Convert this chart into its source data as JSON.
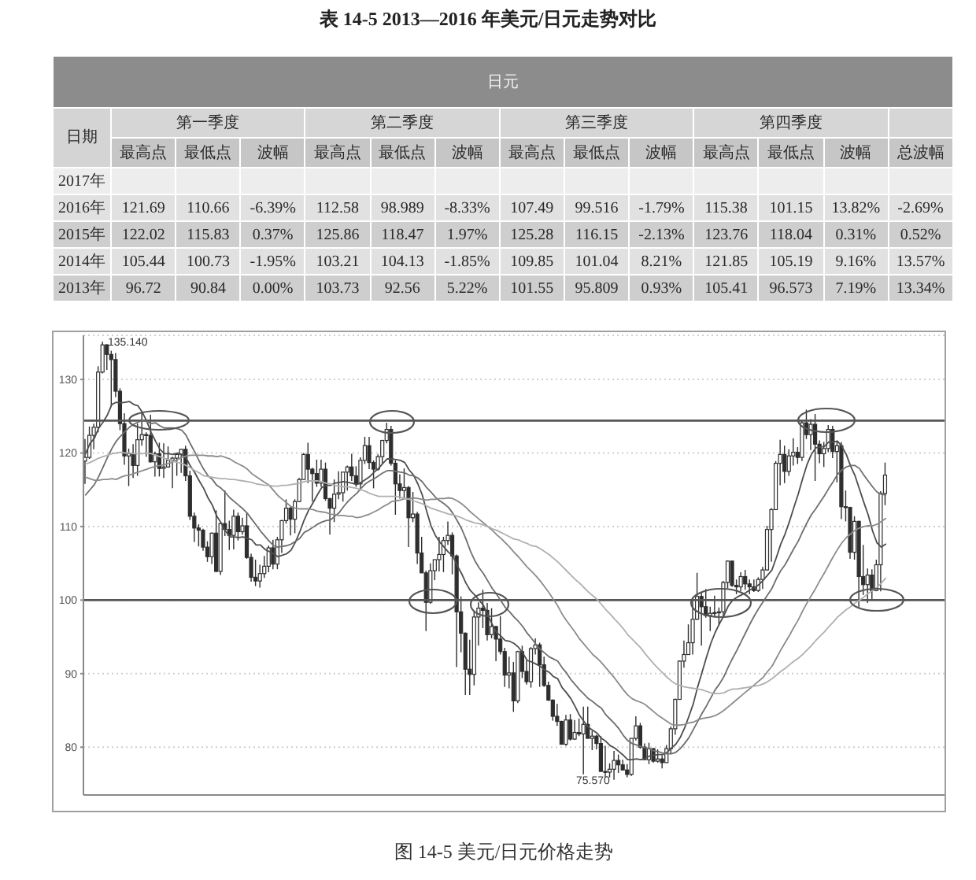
{
  "chart_data": [
    {
      "type": "heatmap",
      "title": "表 14-5 2013—2016 年美元/日元走势对比",
      "subtitle": "日元",
      "ylabel": "日期",
      "annotations": [
        "第一季度",
        "第二季度",
        "第三季度",
        "第四季度"
      ],
      "categories": [
        "最高点",
        "最低点",
        "波幅",
        "最高点",
        "最低点",
        "波幅",
        "最高点",
        "最低点",
        "波幅",
        "最高点",
        "最低点",
        "波幅",
        "总波幅"
      ],
      "y_categories": [
        "2017年",
        "2016年",
        "2015年",
        "2014年",
        "2013年"
      ],
      "cells": [
        [
          null,
          null,
          null,
          null,
          null,
          null,
          null,
          null,
          null,
          null,
          null,
          null,
          null
        ],
        [
          121.69,
          110.66,
          -6.39,
          112.58,
          98.989,
          -8.33,
          107.49,
          99.516,
          -1.79,
          115.38,
          101.15,
          13.82,
          -2.69
        ],
        [
          122.02,
          115.83,
          0.37,
          125.86,
          118.47,
          1.97,
          125.28,
          116.15,
          -2.13,
          123.76,
          118.04,
          0.31,
          0.52
        ],
        [
          105.44,
          100.73,
          -1.95,
          103.21,
          104.13,
          -1.85,
          109.85,
          101.04,
          8.21,
          121.85,
          105.19,
          9.16,
          13.57
        ],
        [
          96.72,
          90.84,
          0,
          103.73,
          92.56,
          5.22,
          101.55,
          95.809,
          0.93,
          105.41,
          96.573,
          7.19,
          13.34
        ]
      ],
      "cell_labels": [
        [
          null,
          null,
          null,
          null,
          null,
          null,
          null,
          null,
          null,
          null,
          null,
          null,
          null
        ],
        [
          "121.69",
          "110.66",
          "-6.39%",
          "112.58",
          "98.989",
          "-8.33%",
          "107.49",
          "99.516",
          "-1.79%",
          "115.38",
          "101.15",
          "13.82%",
          "-2.69%"
        ],
        [
          "122.02",
          "115.83",
          "0.37%",
          "125.86",
          "118.47",
          "1.97%",
          "125.28",
          "116.15",
          "-2.13%",
          "123.76",
          "118.04",
          "0.31%",
          "0.52%"
        ],
        [
          "105.44",
          "100.73",
          "-1.95%",
          "103.21",
          "104.13",
          "-1.85%",
          "109.85",
          "101.04",
          "8.21%",
          "121.85",
          "105.19",
          "9.16%",
          "13.57%"
        ],
        [
          "96.72",
          "90.84",
          "0.00%",
          "103.73",
          "92.56",
          "5.22%",
          "101.55",
          "95.809",
          "0.93%",
          "105.41",
          "96.573",
          "7.19%",
          "13.34%"
        ]
      ]
    },
    {
      "type": "candlestick",
      "title": "图 14-5 美元/日元价格走势",
      "color": "#2e2e2e",
      "categories": [
        null,
        null,
        null,
        null,
        null,
        null,
        null,
        null,
        null,
        null,
        null,
        null,
        null,
        null,
        null,
        null,
        null,
        null,
        null,
        null,
        null,
        null,
        null,
        null,
        null,
        null,
        null,
        null,
        null,
        null,
        null,
        null,
        null,
        null,
        null,
        null,
        null,
        null,
        null,
        null,
        null,
        null,
        null,
        null,
        null,
        null,
        null,
        null,
        null,
        null,
        null,
        null,
        null,
        null,
        null,
        null,
        null,
        null,
        null,
        null,
        null,
        null,
        null,
        null,
        null,
        null,
        null,
        null,
        null,
        null,
        null,
        null,
        null,
        null,
        null,
        null,
        null,
        null,
        null,
        null,
        null,
        null,
        null,
        null,
        null,
        null,
        null,
        null,
        null,
        null,
        null,
        null,
        null,
        null,
        null,
        null,
        null,
        null,
        null,
        null,
        null,
        null,
        null,
        null,
        null,
        null,
        null,
        null,
        null,
        null,
        null,
        null,
        null,
        null,
        null,
        null,
        null,
        null,
        null,
        null,
        null,
        null,
        null,
        null,
        null,
        null,
        null,
        null,
        null,
        null,
        null,
        null,
        null,
        null,
        null,
        null,
        null,
        null,
        null,
        null,
        null,
        null,
        null,
        null,
        null,
        null,
        null,
        null,
        null,
        null,
        null,
        null,
        null,
        null,
        null,
        null,
        null,
        null,
        null,
        null,
        null,
        null,
        null,
        null,
        null,
        null,
        null,
        null,
        null,
        null,
        null,
        null,
        null,
        null,
        null,
        null,
        null,
        null,
        null,
        null,
        null,
        null,
        null,
        null
      ],
      "ohlc": [
        [
          118.9,
          121.9,
          115.8,
          119.4
        ],
        [
          119.4,
          123.6,
          119.2,
          122.4
        ],
        [
          122.4,
          124.0,
          120.5,
          123.5
        ],
        [
          123.5,
          131.8,
          122.8,
          131.0
        ],
        [
          131.0,
          135.14,
          130.8,
          134.7
        ],
        [
          134.7,
          134.8,
          131.3,
          133.4
        ],
        [
          133.4,
          133.9,
          126.3,
          132.7
        ],
        [
          132.7,
          133.6,
          127.6,
          128.4
        ],
        [
          128.4,
          128.8,
          123.1,
          124.0
        ],
        [
          124.0,
          125.4,
          118.4,
          119.6
        ],
        [
          119.6,
          120.6,
          115.5,
          119.9
        ],
        [
          119.9,
          121.2,
          116.6,
          118.3
        ],
        [
          118.3,
          124.0,
          116.9,
          121.8
        ],
        [
          121.8,
          125.6,
          121.0,
          122.5
        ],
        [
          122.5,
          122.8,
          119.5,
          122.4
        ],
        [
          122.4,
          125.2,
          118.7,
          118.8
        ],
        [
          118.8,
          120.2,
          116.8,
          119.9
        ],
        [
          119.9,
          121.4,
          116.8,
          117.9
        ],
        [
          117.9,
          121.3,
          116.6,
          118.1
        ],
        [
          118.1,
          120.9,
          118.0,
          119.0
        ],
        [
          119.0,
          119.5,
          115.2,
          119.3
        ],
        [
          119.3,
          120.0,
          116.9,
          119.8
        ],
        [
          119.8,
          120.6,
          117.3,
          120.5
        ],
        [
          120.5,
          121.0,
          116.2,
          116.9
        ],
        [
          116.9,
          117.6,
          110.9,
          111.4
        ],
        [
          111.4,
          111.9,
          107.9,
          109.8
        ],
        [
          109.8,
          110.3,
          107.3,
          109.5
        ],
        [
          109.5,
          109.7,
          106.7,
          107.2
        ],
        [
          107.2,
          108.0,
          105.2,
          105.9
        ],
        [
          105.9,
          109.2,
          104.9,
          109.1
        ],
        [
          109.1,
          112.2,
          103.8,
          103.9
        ],
        [
          103.9,
          110.5,
          103.4,
          110.4
        ],
        [
          110.4,
          114.9,
          108.7,
          109.6
        ],
        [
          109.6,
          110.8,
          106.8,
          108.8
        ],
        [
          108.8,
          112.3,
          106.9,
          111.4
        ],
        [
          111.4,
          111.9,
          108.1,
          109.3
        ],
        [
          109.3,
          111.2,
          108.9,
          110.1
        ],
        [
          110.1,
          111.9,
          105.6,
          105.8
        ],
        [
          105.8,
          106.3,
          102.5,
          103.1
        ],
        [
          103.1,
          105.5,
          101.9,
          102.6
        ],
        [
          102.6,
          104.8,
          101.7,
          103.6
        ],
        [
          103.6,
          106.0,
          103.0,
          104.6
        ],
        [
          104.6,
          107.4,
          103.8,
          107.1
        ],
        [
          107.1,
          108.2,
          104.2,
          104.9
        ],
        [
          104.9,
          108.6,
          104.2,
          108.2
        ],
        [
          108.2,
          110.9,
          106.4,
          110.8
        ],
        [
          110.8,
          113.7,
          110.4,
          112.5
        ],
        [
          112.5,
          112.7,
          108.8,
          111.0
        ],
        [
          111.0,
          113.7,
          109.1,
          113.4
        ],
        [
          113.4,
          116.6,
          113.3,
          116.4
        ],
        [
          116.4,
          120.0,
          116.4,
          119.8
        ],
        [
          119.8,
          121.4,
          115.9,
          117.8
        ],
        [
          117.8,
          118.0,
          113.4,
          117.2
        ],
        [
          117.2,
          119.1,
          115.4,
          115.9
        ],
        [
          115.9,
          119.1,
          115.4,
          117.8
        ],
        [
          117.8,
          118.7,
          113.5,
          113.8
        ],
        [
          113.8,
          113.9,
          108.9,
          112.5
        ],
        [
          112.5,
          116.4,
          110.6,
          114.4
        ],
        [
          114.4,
          117.5,
          113.7,
          114.6
        ],
        [
          114.6,
          117.4,
          113.4,
          117.4
        ],
        [
          117.4,
          118.3,
          114.9,
          118.1
        ],
        [
          118.1,
          119.9,
          116.2,
          116.9
        ],
        [
          116.9,
          118.2,
          115.4,
          115.8
        ],
        [
          115.8,
          119.4,
          114.9,
          119.0
        ],
        [
          119.0,
          122.2,
          118.5,
          121.0
        ],
        [
          121.0,
          122.2,
          117.8,
          118.7
        ],
        [
          118.7,
          119.0,
          115.2,
          117.8
        ],
        [
          117.8,
          119.8,
          117.6,
          119.5
        ],
        [
          119.5,
          121.8,
          118.6,
          121.7
        ],
        [
          121.7,
          124.1,
          121.3,
          123.2
        ],
        [
          123.2,
          123.7,
          118.3,
          118.6
        ],
        [
          118.6,
          119.0,
          111.6,
          115.8
        ],
        [
          115.8,
          117.1,
          113.8,
          114.9
        ],
        [
          114.9,
          117.9,
          113.7,
          115.3
        ],
        [
          115.3,
          115.5,
          107.2,
          111.2
        ],
        [
          111.2,
          114.7,
          110.6,
          111.7
        ],
        [
          111.7,
          112.0,
          104.9,
          106.4
        ],
        [
          106.4,
          108.6,
          103.7,
          103.7
        ],
        [
          103.7,
          104.0,
          95.8,
          99.7
        ],
        [
          99.7,
          105.0,
          99.5,
          104.0
        ],
        [
          104.0,
          105.5,
          102.7,
          105.5
        ],
        [
          105.5,
          108.6,
          103.9,
          106.2
        ],
        [
          106.2,
          108.6,
          103.8,
          108.1
        ],
        [
          108.1,
          110.7,
          107.5,
          108.8
        ],
        [
          108.8,
          109.2,
          103.5,
          106.0
        ],
        [
          106.0,
          106.2,
          90.9,
          98.4
        ],
        [
          98.4,
          100.5,
          92.9,
          95.5
        ],
        [
          95.5,
          95.6,
          87.1,
          90.6
        ],
        [
          90.6,
          94.6,
          87.1,
          89.9
        ],
        [
          89.9,
          98.4,
          88.4,
          97.7
        ],
        [
          97.7,
          99.7,
          93.8,
          98.9
        ],
        [
          98.9,
          101.4,
          96.2,
          98.6
        ],
        [
          98.6,
          99.6,
          94.5,
          95.3
        ],
        [
          95.3,
          98.9,
          94.8,
          96.4
        ],
        [
          96.4,
          96.5,
          91.7,
          94.7
        ],
        [
          94.7,
          97.8,
          92.6,
          93.0
        ],
        [
          93.0,
          93.5,
          88.2,
          89.8
        ],
        [
          89.8,
          92.3,
          88.0,
          90.1
        ],
        [
          90.1,
          91.6,
          84.8,
          86.3
        ],
        [
          86.3,
          93.1,
          86.0,
          93.0
        ],
        [
          93.0,
          93.8,
          89.4,
          90.3
        ],
        [
          90.3,
          91.8,
          88.5,
          88.9
        ],
        [
          88.9,
          93.6,
          88.1,
          93.4
        ],
        [
          93.4,
          94.8,
          92.6,
          93.9
        ],
        [
          93.9,
          94.2,
          88.2,
          91.2
        ],
        [
          91.2,
          92.3,
          88.2,
          88.4
        ],
        [
          88.4,
          88.9,
          86.3,
          86.4
        ],
        [
          86.4,
          86.5,
          83.6,
          84.2
        ],
        [
          84.2,
          85.9,
          82.9,
          83.5
        ],
        [
          83.5,
          83.6,
          80.4,
          80.4
        ],
        [
          80.4,
          84.4,
          80.2,
          83.7
        ],
        [
          83.7,
          84.5,
          80.9,
          81.1
        ],
        [
          81.1,
          83.7,
          81.0,
          82.0
        ],
        [
          82.0,
          83.9,
          81.5,
          81.8
        ],
        [
          81.8,
          85.5,
          76.3,
          83.1
        ],
        [
          83.1,
          85.5,
          81.2,
          81.2
        ],
        [
          81.2,
          82.2,
          79.6,
          81.5
        ],
        [
          81.5,
          81.7,
          79.7,
          80.5
        ],
        [
          80.5,
          81.5,
          76.7,
          76.7
        ],
        [
          76.7,
          80.2,
          75.9,
          76.6
        ],
        [
          76.6,
          77.8,
          75.9,
          77.0
        ],
        [
          77.0,
          79.5,
          75.57,
          78.2
        ],
        [
          78.2,
          79.0,
          76.5,
          77.6
        ],
        [
          77.6,
          78.3,
          76.9,
          76.9
        ],
        [
          76.9,
          77.7,
          75.9,
          76.3
        ],
        [
          76.3,
          81.2,
          76.1,
          81.2
        ],
        [
          81.2,
          84.2,
          80.9,
          82.9
        ],
        [
          82.9,
          83.3,
          79.8,
          80.0
        ],
        [
          80.0,
          80.5,
          78.3,
          78.3
        ],
        [
          78.3,
          80.6,
          77.7,
          79.8
        ],
        [
          79.8,
          79.9,
          77.9,
          78.1
        ],
        [
          78.1,
          79.7,
          77.9,
          78.4
        ],
        [
          78.4,
          78.9,
          77.1,
          77.9
        ],
        [
          77.9,
          80.3,
          77.9,
          79.8
        ],
        [
          79.8,
          82.8,
          79.1,
          82.5
        ],
        [
          82.5,
          86.6,
          81.7,
          86.5
        ],
        [
          86.5,
          91.8,
          86.5,
          91.7
        ],
        [
          91.7,
          94.5,
          90.8,
          92.6
        ],
        [
          92.6,
          96.7,
          92.6,
          94.2
        ],
        [
          94.2,
          99.9,
          92.6,
          97.4
        ],
        [
          97.4,
          103.7,
          97.3,
          100.5
        ],
        [
          100.5,
          101.0,
          93.8,
          99.1
        ],
        [
          99.1,
          101.5,
          97.6,
          97.9
        ],
        [
          97.9,
          99.1,
          95.8,
          98.2
        ],
        [
          98.2,
          100.6,
          97.7,
          98.3
        ],
        [
          98.3,
          99.0,
          96.6,
          98.4
        ],
        [
          98.4,
          102.6,
          97.6,
          102.4
        ],
        [
          102.4,
          105.4,
          101.6,
          105.3
        ],
        [
          105.3,
          105.4,
          101.8,
          102.0
        ],
        [
          102.0,
          102.8,
          100.8,
          101.8
        ],
        [
          101.8,
          103.8,
          101.2,
          103.2
        ],
        [
          103.2,
          104.1,
          101.4,
          102.2
        ],
        [
          102.2,
          102.8,
          100.8,
          101.8
        ],
        [
          101.8,
          102.8,
          101.1,
          101.3
        ],
        [
          101.3,
          103.1,
          101.1,
          102.8
        ],
        [
          102.8,
          104.5,
          101.5,
          104.1
        ],
        [
          104.1,
          110.1,
          104.0,
          109.6
        ],
        [
          109.6,
          112.5,
          105.2,
          112.3
        ],
        [
          112.3,
          118.9,
          112.3,
          118.6
        ],
        [
          118.6,
          121.8,
          115.6,
          119.8
        ],
        [
          119.8,
          121.0,
          115.9,
          117.5
        ],
        [
          117.5,
          120.5,
          116.9,
          119.6
        ],
        [
          119.6,
          122.0,
          118.3,
          120.1
        ],
        [
          120.1,
          120.8,
          118.5,
          119.4
        ],
        [
          119.4,
          124.5,
          118.9,
          124.1
        ],
        [
          124.1,
          125.9,
          121.9,
          122.5
        ],
        [
          122.5,
          124.6,
          120.4,
          123.9
        ],
        [
          123.9,
          125.3,
          116.2,
          121.2
        ],
        [
          121.2,
          121.7,
          118.6,
          119.9
        ],
        [
          119.9,
          121.5,
          118.1,
          120.6
        ],
        [
          120.6,
          123.8,
          120.1,
          123.2
        ],
        [
          123.2,
          123.7,
          119.3,
          120.2
        ],
        [
          120.2,
          121.7,
          116.0,
          121.0
        ],
        [
          121.0,
          121.5,
          111.0,
          112.7
        ],
        [
          112.7,
          114.9,
          110.7,
          112.6
        ],
        [
          112.6,
          112.7,
          105.6,
          106.5
        ],
        [
          106.5,
          111.4,
          105.5,
          110.7
        ],
        [
          110.7,
          110.8,
          99.0,
          103.2
        ],
        [
          103.2,
          107.5,
          100.7,
          102.1
        ],
        [
          102.1,
          104.3,
          99.6,
          103.4
        ],
        [
          103.4,
          104.2,
          100.1,
          101.3
        ],
        [
          101.3,
          105.5,
          101.2,
          104.8
        ],
        [
          104.8,
          114.8,
          101.2,
          114.5
        ],
        [
          114.5,
          118.7,
          112.9,
          117.0
        ]
      ],
      "series": [
        {
          "type": "line",
          "color": "#4d4d4d",
          "values": [
            119.9,
            121.3,
            122.0,
            123.4,
            124.2,
            125.2,
            126.6,
            126.9,
            126.8,
            126.9,
            127.0,
            126.6,
            126.4,
            125.5,
            124.3,
            122.8,
            121.6,
            120.5,
            119.9,
            119.9,
            119.8,
            120.0,
            119.8,
            119.3,
            118.2,
            117.3,
            116.2,
            115.2,
            113.9,
            112.9,
            111.4,
            110.5,
            109.4,
            108.6,
            108.6,
            108.5,
            108.6,
            108.4,
            108.2,
            107.5,
            107.5,
            106.9,
            106.6,
            106.3,
            105.9,
            106.1,
            106.3,
            106.8,
            107.9,
            109.3,
            110.9,
            112.2,
            113.2,
            114.3,
            115.3,
            115.6,
            115.6,
            115.9,
            116.0,
            116.1,
            116.0,
            115.9,
            115.7,
            116.0,
            116.4,
            116.8,
            117.4,
            117.9,
            118.6,
            119.2,
            119.2,
            119.1,
            119.0,
            118.7,
            117.7,
            117.0,
            115.8,
            114.3,
            112.1,
            110.1,
            108.8,
            107.9,
            107.2,
            106.5,
            106.0,
            104.7,
            103.6,
            102.3,
            101.3,
            100.7,
            100.0,
            99.3,
            98.0,
            96.7,
            95.6,
            95.1,
            94.5,
            94.4,
            94.1,
            93.6,
            92.8,
            91.8,
            91.6,
            91.3,
            91.0,
            90.5,
            90.2,
            89.6,
            89.3,
            88.1,
            87.4,
            86.6,
            85.5,
            84.3,
            83.5,
            82.7,
            82.3,
            81.9,
            81.2,
            80.8,
            80.2,
            79.9,
            79.4,
            78.9,
            78.3,
            78.3,
            78.4,
            78.3,
            78.5,
            78.8,
            78.9,
            79.0,
            79.0,
            79.3,
            79.9,
            80.4,
            81.3,
            82.6,
            84.2,
            85.9,
            88.2,
            90.2,
            92.2,
            94.1,
            95.6,
            96.8,
            97.9,
            99.2,
            100.0,
            100.4,
            100.7,
            101.0,
            101.4,
            101.7,
            102.1,
            102.7,
            103.4,
            104.1,
            105.8,
            107.6,
            109.0,
            110.7,
            112.6,
            114.4,
            116.5,
            118.4,
            119.8,
            120.7,
            120.8,
            120.9,
            121.5,
            121.5,
            121.6,
            120.9,
            119.8,
            118.2,
            116.9,
            115.1,
            113.3,
            111.6,
            109.4,
            107.8,
            107.2,
            107.6
          ]
        },
        {
          "type": "line",
          "color": "#6e6e6e",
          "values": [
            114.3,
            115.0,
            115.7,
            116.8,
            118.1,
            119.4,
            120.6,
            121.6,
            122.3,
            122.9,
            123.5,
            123.9,
            124.2,
            124.4,
            124.3,
            124.0,
            124.1,
            123.7,
            123.4,
            123.4,
            123.4,
            123.3,
            123.1,
            122.4,
            121.2,
            120.1,
            118.9,
            117.8,
            116.9,
            116.4,
            115.6,
            115.2,
            114.6,
            113.9,
            113.4,
            112.9,
            112.4,
            111.8,
            111.0,
            110.2,
            109.4,
            108.7,
            108.0,
            107.4,
            107.2,
            107.3,
            107.4,
            107.6,
            108.0,
            108.4,
            109.2,
            109.5,
            109.9,
            110.3,
            110.6,
            110.8,
            110.9,
            111.4,
            111.9,
            112.7,
            113.4,
            114.0,
            114.5,
            115.2,
            115.8,
            116.2,
            116.5,
            116.9,
            117.3,
            117.6,
            117.6,
            117.5,
            117.4,
            117.3,
            117.0,
            116.9,
            116.6,
            116.1,
            115.3,
            114.7,
            114.0,
            113.5,
            113.1,
            112.6,
            111.8,
            110.8,
            109.7,
            108.3,
            106.7,
            105.4,
            104.4,
            103.6,
            102.6,
            101.6,
            100.8,
            99.9,
            99.0,
            98.4,
            97.7,
            97.1,
            96.4,
            95.5,
            94.8,
            94.0,
            93.3,
            92.8,
            92.3,
            92.0,
            91.7,
            90.8,
            90.1,
            89.2,
            88.5,
            87.8,
            87.2,
            86.6,
            86.2,
            85.7,
            85.3,
            84.4,
            83.8,
            83.2,
            82.5,
            81.6,
            80.9,
            80.5,
            80.3,
            80.1,
            79.9,
            79.8,
            79.5,
            79.4,
            79.2,
            79.1,
            79.1,
            79.3,
            79.8,
            80.5,
            81.3,
            82.4,
            83.5,
            84.6,
            85.6,
            86.7,
            87.8,
            88.6,
            89.6,
            90.9,
            92.1,
            93.2,
            94.4,
            95.6,
            96.8,
            97.9,
            98.9,
            99.8,
            100.7,
            101.6,
            102.9,
            104.0,
            104.8,
            105.9,
            107.0,
            108.0,
            109.3,
            110.5,
            111.6,
            112.4,
            113.3,
            114.2,
            115.2,
            116.1,
            117.1,
            117.7,
            118.1,
            118.3,
            118.3,
            117.9,
            117.0,
            116.2,
            115.4,
            114.7,
            114.4,
            114.3
          ]
        },
        {
          "type": "line",
          "color": "#8c8c8c",
          "values": [
            116.7,
            116.5,
            116.3,
            116.3,
            116.4,
            116.4,
            116.5,
            116.4,
            116.7,
            116.9,
            117.0,
            117.2,
            117.4,
            117.6,
            117.8,
            118.0,
            118.2,
            118.3,
            118.4,
            118.6,
            118.8,
            119.1,
            119.4,
            119.6,
            119.7,
            119.7,
            119.7,
            119.7,
            119.6,
            119.6,
            119.5,
            119.6,
            119.4,
            119.2,
            118.8,
            118.5,
            118.2,
            117.8,
            117.2,
            116.8,
            116.4,
            116.0,
            115.6,
            114.9,
            114.2,
            113.7,
            113.2,
            112.7,
            112.5,
            112.4,
            112.4,
            112.4,
            112.3,
            112.1,
            112.0,
            111.9,
            111.7,
            111.6,
            111.5,
            111.5,
            111.4,
            111.4,
            111.2,
            111.3,
            111.5,
            111.7,
            112.0,
            112.3,
            112.7,
            113.0,
            113.4,
            113.5,
            113.6,
            113.8,
            113.8,
            113.9,
            113.8,
            113.7,
            113.6,
            113.7,
            113.7,
            113.8,
            113.8,
            113.9,
            113.8,
            113.5,
            113.1,
            112.6,
            112.0,
            111.5,
            111.0,
            110.5,
            110.0,
            109.5,
            108.9,
            108.4,
            107.8,
            107.2,
            106.5,
            105.9,
            105.2,
            104.5,
            103.9,
            103.3,
            102.6,
            101.8,
            101.0,
            100.1,
            99.2,
            98.1,
            97.2,
            96.4,
            95.6,
            94.7,
            94.0,
            93.3,
            92.6,
            92.1,
            91.5,
            90.8,
            90.1,
            89.4,
            88.6,
            87.8,
            87.1,
            86.6,
            86.3,
            86.1,
            85.8,
            85.3,
            84.8,
            84.3,
            83.9,
            83.5,
            83.1,
            83.0,
            83.0,
            83.1,
            83.3,
            83.4,
            83.7,
            83.9,
            84.0,
            84.1,
            84.3,
            84.6,
            85.0,
            85.5,
            86.0,
            86.5,
            87.0,
            87.5,
            88.0,
            88.5,
            89.0,
            89.5,
            90.3,
            91.0,
            92.1,
            93.2,
            94.2,
            95.2,
            96.3,
            97.3,
            98.5,
            99.6,
            100.6,
            101.6,
            102.7,
            103.7,
            104.8,
            105.9,
            106.9,
            107.8,
            108.5,
            109.0,
            109.5,
            109.8,
            110.0,
            110.1,
            110.1,
            110.3,
            110.7,
            111.1
          ]
        },
        {
          "type": "line",
          "color": "#b0b0b0",
          "values": [
            118.5,
            118.7,
            119.0,
            119.3,
            119.5,
            119.7,
            119.9,
            120.0,
            120.1,
            120.0,
            120.0,
            119.9,
            119.9,
            119.9,
            120.0,
            119.9,
            119.7,
            119.5,
            119.3,
            119.1,
            118.9,
            118.7,
            118.6,
            118.3,
            118.0,
            117.6,
            117.3,
            116.9,
            116.8,
            116.7,
            116.6,
            116.5,
            116.5,
            116.4,
            116.4,
            116.3,
            116.2,
            116.1,
            116.0,
            115.8,
            115.7,
            115.6,
            115.6,
            115.5,
            115.5,
            115.6,
            115.6,
            115.7,
            115.8,
            115.9,
            116.1,
            116.2,
            116.2,
            116.2,
            116.1,
            115.9,
            115.8,
            115.6,
            115.5,
            115.4,
            115.4,
            115.3,
            115.2,
            115.0,
            114.8,
            114.5,
            114.3,
            114.1,
            114.1,
            114.1,
            114.1,
            114.1,
            114.0,
            113.8,
            113.7,
            113.5,
            113.3,
            113.1,
            112.8,
            112.5,
            112.3,
            112.1,
            111.9,
            111.7,
            111.6,
            111.4,
            111.2,
            110.9,
            110.7,
            110.5,
            110.4,
            110.2,
            110.0,
            109.7,
            109.5,
            109.2,
            108.9,
            108.6,
            108.3,
            108.2,
            107.9,
            107.7,
            107.4,
            107.3,
            107.0,
            106.6,
            106.2,
            105.7,
            105.2,
            104.6,
            104.0,
            103.4,
            102.8,
            102.3,
            101.7,
            101.1,
            100.6,
            100.1,
            99.4,
            98.7,
            98.1,
            97.4,
            96.8,
            96.1,
            95.3,
            94.7,
            94.1,
            93.5,
            92.7,
            92.0,
            91.3,
            90.7,
            90.1,
            89.5,
            89.0,
            88.6,
            88.4,
            88.2,
            88.1,
            88.0,
            87.9,
            87.8,
            87.6,
            87.4,
            87.3,
            87.3,
            87.4,
            87.7,
            87.9,
            87.9,
            88.0,
            88.1,
            88.2,
            88.3,
            88.4,
            88.6,
            88.9,
            89.3,
            89.8,
            90.3,
            90.7,
            91.2,
            91.7,
            92.1,
            92.6,
            93.2,
            93.8,
            94.5,
            95.1,
            95.7,
            96.4,
            97.0,
            97.7,
            98.2,
            98.7,
            99.1,
            99.6,
            100.0,
            100.4,
            100.9,
            101.3,
            101.7,
            102.3,
            103.0
          ]
        }
      ],
      "ylim": [
        73.5,
        136
      ],
      "yticks": [
        80,
        90,
        100,
        110,
        120,
        130
      ],
      "grid": "y",
      "ref_lines": [
        {
          "axis": "y",
          "value": 124.4,
          "color": "#555555"
        },
        {
          "axis": "y",
          "value": 100,
          "color": "#555555"
        }
      ],
      "annotations": [
        "135.140",
        "75.570"
      ]
    }
  ]
}
